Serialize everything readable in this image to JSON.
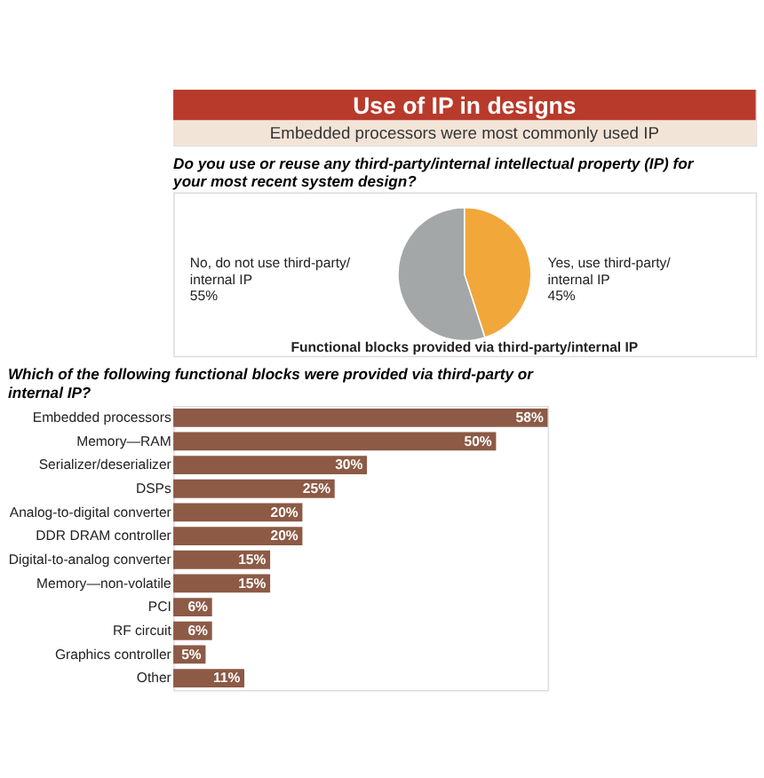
{
  "chart_data": [
    {
      "type": "other",
      "title": "Use of IP in designs",
      "subtitle": "Embedded processors were most commonly used IP"
    },
    {
      "type": "pie",
      "title": "Do you use or reuse any third-party/internal intellectual property (IP) for your most recent system design?",
      "categories": [
        "No, do not use third-party/ internal IP",
        "Yes, use third-party/ internal IP"
      ],
      "values": [
        55,
        45
      ],
      "value_labels": [
        "55%",
        "45%"
      ],
      "colors": [
        "#a3a7a8",
        "#f2a73b"
      ],
      "annotations": [
        "Functional blocks provided via third-party/internal IP"
      ]
    },
    {
      "type": "bar",
      "orientation": "horizontal",
      "title": "Which of the following functional blocks were provided via third-party or internal IP?",
      "categories": [
        "Embedded processors",
        "Memory—RAM",
        "Serializer/deserializer",
        "DSPs",
        "Analog-to-digital converter",
        "DDR DRAM controller",
        "Digital-to-analog converter",
        "Memory—non-volatile",
        "PCI",
        "RF circuit",
        "Graphics controller",
        "Other"
      ],
      "values": [
        58,
        50,
        30,
        25,
        20,
        20,
        15,
        15,
        6,
        6,
        5,
        11
      ],
      "value_labels": [
        "58%",
        "50%",
        "30%",
        "25%",
        "20%",
        "20%",
        "15%",
        "15%",
        "6%",
        "6%",
        "5%",
        "11%"
      ],
      "color": "#8c5a45"
    }
  ]
}
